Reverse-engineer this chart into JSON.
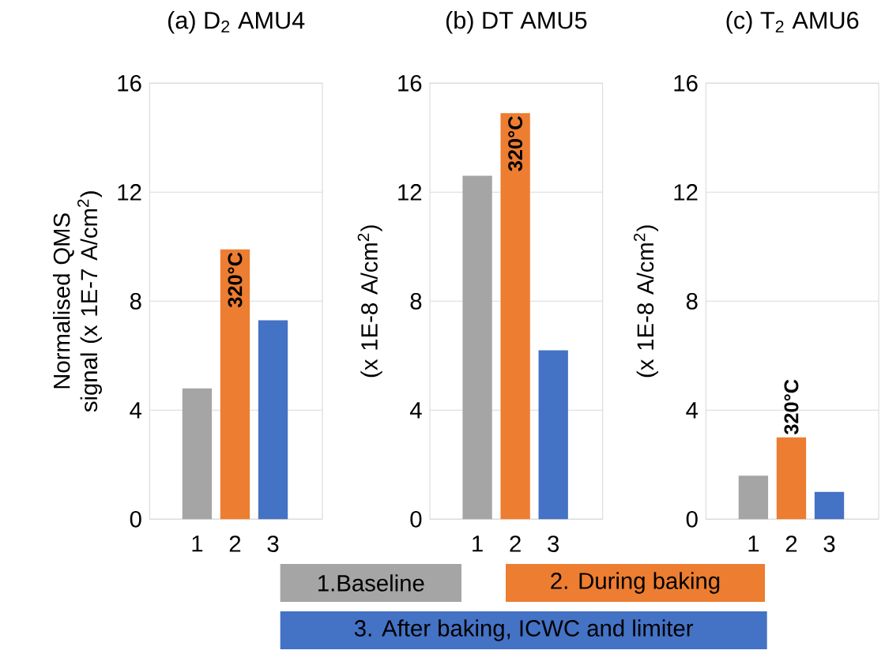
{
  "chart_data": [
    {
      "type": "bar",
      "title": "(a) D$_{2}$ AMU4",
      "ylabel": "Normalised QMS signal (x 1E-7 A/cm$^{2}$)",
      "categories": [
        "1",
        "2",
        "3"
      ],
      "series": [
        {
          "color": "#a5a5a5",
          "values": [
            4.8,
            null,
            null
          ]
        },
        {
          "color": "#ed7d31",
          "values": [
            null,
            9.9,
            null
          ]
        },
        {
          "color": "#4472c4",
          "values": [
            null,
            null,
            7.3
          ]
        }
      ],
      "ylim": [
        0,
        16
      ],
      "yticks": [
        0,
        4,
        8,
        12,
        16
      ],
      "grid": "y",
      "annotations": [
        {
          "text": "320°C",
          "x": "2",
          "y": 9.9
        }
      ]
    },
    {
      "type": "bar",
      "title": "(b) DT AMU5",
      "ylabel": "(x 1E-8 A/cm$^{2}$)",
      "categories": [
        "1",
        "2",
        "3"
      ],
      "series": [
        {
          "name": "1.Baseline",
          "color": "#a5a5a5",
          "values": [
            12.6,
            null,
            null
          ]
        },
        {
          "name": "2. During baking",
          "color": "#ed7d31",
          "values": [
            null,
            14.9,
            null
          ]
        },
        {
          "name": "3. After baking, ICWC and limiter",
          "color": "#4472c4",
          "values": [
            null,
            null,
            6.2
          ]
        }
      ],
      "ylim": [
        0,
        16
      ],
      "yticks": [
        0,
        4,
        8,
        12,
        16
      ],
      "grid": "y",
      "legend": "bottom",
      "annotations": [
        {
          "text": "320°C",
          "x": "2",
          "y": 14.9
        }
      ]
    },
    {
      "type": "bar",
      "title": "(c) T$_{2}$ AMU6",
      "ylabel": "(x 1E-8 A/cm$^{2}$)",
      "categories": [
        "1",
        "2",
        "3"
      ],
      "series": [
        {
          "color": "#a5a5a5",
          "values": [
            1.6,
            null,
            null
          ]
        },
        {
          "color": "#ed7d31",
          "values": [
            null,
            3.0,
            null
          ]
        },
        {
          "color": "#4472c4",
          "values": [
            null,
            null,
            1.0
          ]
        }
      ],
      "ylim": [
        0,
        16
      ],
      "yticks": [
        0,
        4,
        8,
        12,
        16
      ],
      "grid": "y",
      "annotations": [
        {
          "text": "320°C",
          "x": "2",
          "y": 3.0
        }
      ]
    }
  ]
}
